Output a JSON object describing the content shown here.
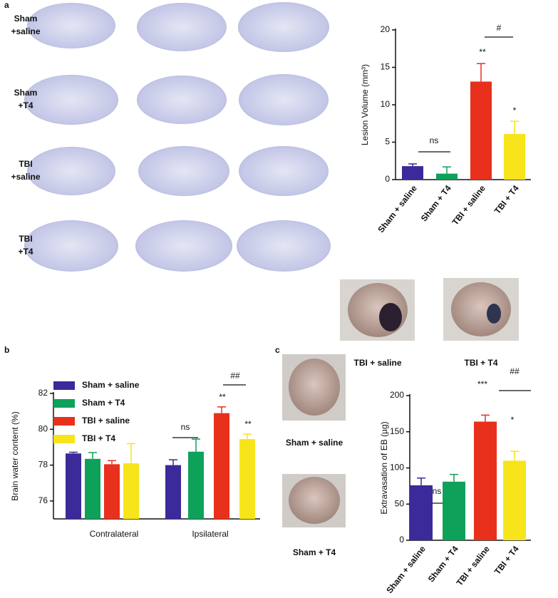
{
  "panel_labels": [
    "a",
    "b",
    "c"
  ],
  "slice_rows": [
    [
      "Sham",
      "+saline"
    ],
    [
      "Sham",
      "+T4"
    ],
    [
      "TBI",
      "+saline"
    ],
    [
      "TBI",
      "+T4"
    ]
  ],
  "photo_captions": [
    "TBI + saline",
    "TBI + T4",
    "Sham + saline",
    "Sham + T4"
  ],
  "chart_data": [
    {
      "type": "bar",
      "y_label": "Lesion Volume (mm³)",
      "categories": [
        "Sham + saline",
        "Sham + T4",
        "TBI + saline",
        "TBI + T4"
      ],
      "values": [
        1.8,
        0.8,
        13.1,
        6.1
      ],
      "errors": [
        0.3,
        0.9,
        2.4,
        1.7
      ],
      "colors": [
        "#3a2a9a",
        "#0ea15a",
        "#e8301c",
        "#f7e41a"
      ],
      "ylim": [
        0,
        20
      ],
      "yticks": [
        0,
        5,
        10,
        15,
        20
      ],
      "annotations": [
        "ns",
        "**",
        "*",
        "#"
      ]
    },
    {
      "type": "grouped-bar",
      "y_label": "Brain water content (%)",
      "categories": [
        "Contralateral",
        "Ipsilateral"
      ],
      "series": [
        {
          "name": "Sham + saline",
          "color": "#3a2a9a",
          "values": [
            78.65,
            78.0
          ],
          "errors": [
            0.07,
            0.3
          ]
        },
        {
          "name": "Sham + T4",
          "color": "#0ea15a",
          "values": [
            78.35,
            78.75
          ],
          "errors": [
            0.35,
            0.7
          ]
        },
        {
          "name": "TBI + saline",
          "color": "#e8301c",
          "values": [
            78.05,
            80.9
          ],
          "errors": [
            0.2,
            0.35
          ]
        },
        {
          "name": "TBI + T4",
          "color": "#f7e41a",
          "values": [
            78.1,
            79.45
          ],
          "errors": [
            1.1,
            0.28
          ]
        }
      ],
      "ylim": [
        75,
        82
      ],
      "yticks": [
        76,
        78,
        80,
        82
      ],
      "legend": "upper left",
      "annotations": [
        "ns",
        "**",
        "**",
        "##"
      ]
    },
    {
      "type": "bar",
      "y_label": "Extravasation of EB (µg)",
      "categories": [
        "Sham + saline",
        "Sham + T4",
        "TBI + saline",
        "TBI + T4"
      ],
      "values": [
        76,
        81,
        164,
        110
      ],
      "errors": [
        10,
        10,
        9,
        13
      ],
      "colors": [
        "#3a2a9a",
        "#0ea15a",
        "#e8301c",
        "#f7e41a"
      ],
      "ylim": [
        0,
        200
      ],
      "yticks": [
        0,
        50,
        100,
        150,
        200
      ],
      "annotations": [
        "ns",
        "***",
        "*",
        "##"
      ]
    }
  ]
}
